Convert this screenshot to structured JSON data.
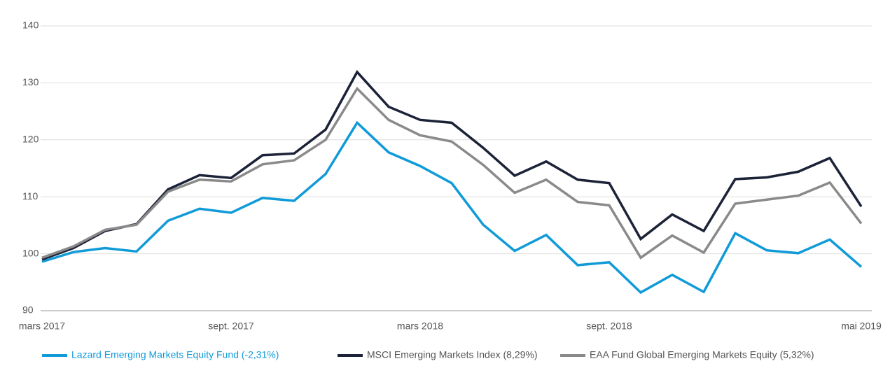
{
  "chart_data": {
    "type": "line",
    "categories": [
      "mars 2017",
      null,
      null,
      null,
      null,
      null,
      "sept. 2017",
      null,
      null,
      null,
      null,
      null,
      "mars 2018",
      null,
      null,
      null,
      null,
      null,
      "sept. 2018",
      null,
      null,
      null,
      null,
      null,
      null,
      null,
      "mai 2019"
    ],
    "series": [
      {
        "name": "Lazard Emerging Markets Equity Fund (-2,31%)",
        "color": "#109bd8",
        "values": [
          98.6,
          100.3,
          101.0,
          100.4,
          105.8,
          107.9,
          107.2,
          109.8,
          109.3,
          114.0,
          123.0,
          117.8,
          115.4,
          112.4,
          105.1,
          100.5,
          103.3,
          98.0,
          98.5,
          93.2,
          96.3,
          93.3,
          103.6,
          100.6,
          100.1,
          102.5,
          97.7
        ]
      },
      {
        "name": "MSCI Emerging Markets Index (8,29%)",
        "color": "#1c2237",
        "values": [
          99.0,
          101.0,
          104.0,
          105.2,
          111.3,
          113.8,
          113.3,
          117.3,
          117.6,
          121.8,
          131.9,
          125.8,
          123.5,
          123.0,
          118.6,
          113.7,
          116.2,
          113.0,
          112.4,
          102.6,
          106.9,
          104.0,
          113.1,
          113.4,
          114.4,
          116.8,
          108.3
        ]
      },
      {
        "name": "EAA Fund Global Emerging Markets Equity (5,32%)",
        "color": "#8a8a8a",
        "values": [
          99.3,
          101.3,
          104.2,
          105.1,
          110.9,
          113.0,
          112.7,
          115.7,
          116.4,
          120.0,
          129.0,
          123.5,
          120.8,
          119.7,
          115.6,
          110.7,
          113.0,
          109.1,
          108.5,
          99.3,
          103.2,
          100.2,
          108.8,
          109.5,
          110.2,
          112.5,
          105.3
        ]
      }
    ],
    "ylim": [
      90,
      140
    ],
    "yticks": [
      90,
      100,
      110,
      120,
      130,
      140
    ],
    "grid": true
  }
}
